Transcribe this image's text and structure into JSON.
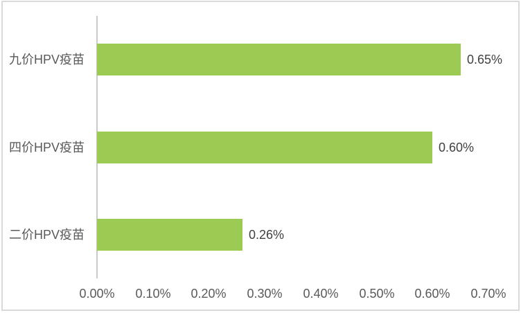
{
  "chart_data": {
    "type": "bar",
    "orientation": "horizontal",
    "title": "",
    "xlabel": "",
    "ylabel": "",
    "categories": [
      "九价HPV疫苗",
      "四价HPV疫苗",
      "二价HPV疫苗"
    ],
    "values": [
      0.65,
      0.6,
      0.26
    ],
    "value_labels": [
      "0.65%",
      "0.60%",
      "0.26%"
    ],
    "xlim": [
      0,
      0.7
    ],
    "x_tick_values": [
      0.0,
      0.1,
      0.2,
      0.3,
      0.4,
      0.5,
      0.6,
      0.7
    ],
    "x_tick_labels": [
      "0.00%",
      "0.10%",
      "0.20%",
      "0.30%",
      "0.40%",
      "0.50%",
      "0.60%",
      "0.70%"
    ],
    "grid": false,
    "legend": false,
    "colors": {
      "bar": "#9bcb53",
      "axis_line": "#c9c9c9",
      "category_text": "#595959",
      "tick_text": "#595959",
      "data_label_text": "#404040",
      "frame_border": "#d9d9d9",
      "background": "#ffffff"
    }
  }
}
